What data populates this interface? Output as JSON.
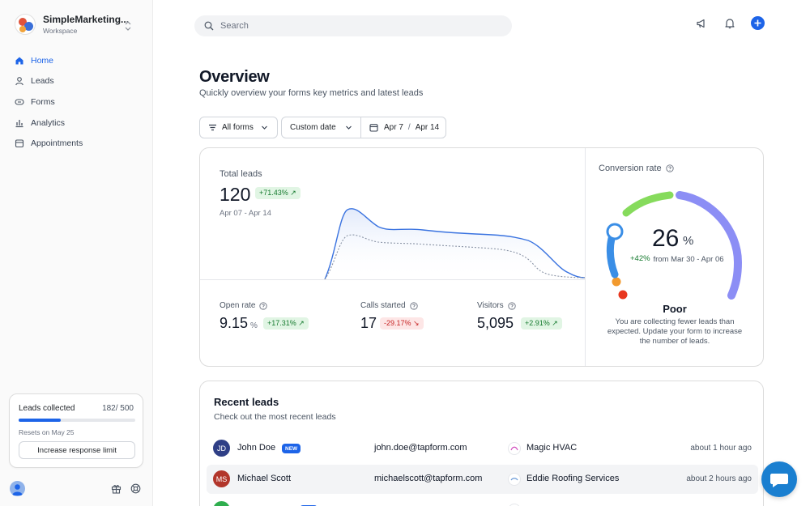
{
  "workspace": {
    "name": "SimpleMarketing...",
    "subtitle": "Workspace"
  },
  "nav": [
    {
      "label": "Home",
      "icon": "home-icon",
      "active": true
    },
    {
      "label": "Leads",
      "icon": "user-icon"
    },
    {
      "label": "Forms",
      "icon": "forms-icon"
    },
    {
      "label": "Analytics",
      "icon": "analytics-icon"
    },
    {
      "label": "Appointments",
      "icon": "calendar-icon"
    }
  ],
  "leads_collected": {
    "title": "Leads collected",
    "count": "182/ 500",
    "progress_fraction": 0.364,
    "reset": "Resets on May 25",
    "button": "Increase response limit"
  },
  "search": {
    "placeholder": "Search"
  },
  "header": {
    "title": "Overview",
    "subtitle": "Quickly overview your forms key metrics and latest leads"
  },
  "filters": {
    "forms": "All forms",
    "date_mode": "Custom date",
    "date_from": "Apr 7",
    "date_sep": "/",
    "date_to": "Apr 14"
  },
  "total_leads": {
    "label": "Total leads",
    "value": "120",
    "change": "+71.43% ↗",
    "range": "Apr 07 - Apr 14"
  },
  "metrics": [
    {
      "label": "Open rate",
      "value": "9.15",
      "unit": "%",
      "change": "+17.31% ↗",
      "trend": "up"
    },
    {
      "label": "Calls started",
      "value": "17",
      "unit": "",
      "change": "-29.17% ↘",
      "trend": "down"
    },
    {
      "label": "Visitors",
      "value": "5,095",
      "unit": "",
      "change": "+2.91% ↗",
      "trend": "up"
    }
  ],
  "conversion": {
    "label": "Conversion rate",
    "value": "26",
    "unit": "%",
    "change": "+42%",
    "from": "from Mar 30 - Apr 06",
    "grade": "Poor",
    "description": "You are collecting fewer leads than expected. Update your form to increase the number of leads."
  },
  "recent": {
    "title": "Recent leads",
    "subtitle": "Check out the most recent leads",
    "rows": [
      {
        "initials": "JD",
        "name": "John Doe",
        "is_new": true,
        "new_label": "NEW",
        "email": "john.doe@tapform.com",
        "company": "Magic HVAC",
        "time": "about 1 hour ago",
        "avatar_color": "#2f3f86"
      },
      {
        "initials": "MS",
        "name": "Michael Scott",
        "is_new": false,
        "email": "michaelscott@tapform.com",
        "company": "Eddie Roofing Services",
        "time": "about 2 hours ago",
        "avatar_color": "#b2362b"
      }
    ]
  },
  "colors": {
    "accent": "#1d64e8",
    "up": "#157a2e",
    "down": "#c72626"
  }
}
